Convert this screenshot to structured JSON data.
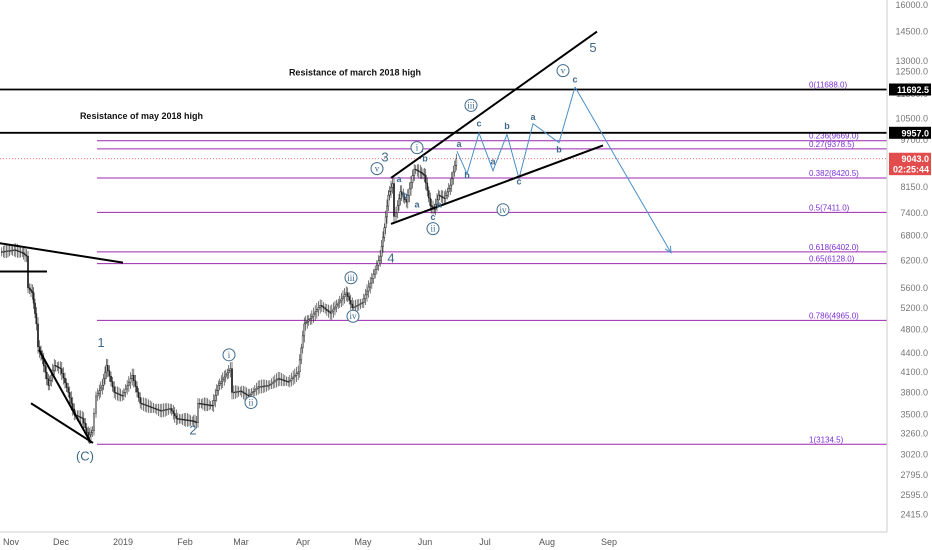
{
  "chart_data": {
    "type": "candlestick",
    "symbol_hint": "BTCUSD",
    "scale": "log",
    "y_range": [
      2415,
      17000
    ],
    "x_range": [
      "2018-11-01",
      "2019-09-30"
    ],
    "price_ticks": [
      "16000.0",
      "14500.0",
      "13000.0",
      "12500.0",
      "11500.0",
      "10500.0",
      "9700.0",
      "8900.0",
      "8150.0",
      "7400.0",
      "6800.0",
      "6200.0",
      "5600.0",
      "5200.0",
      "4800.0",
      "4400.0",
      "4100.0",
      "3800.0",
      "3500.0",
      "3260.0",
      "3020.0",
      "2795.0",
      "2595.0",
      "2415.0"
    ],
    "tick_values": [
      16000,
      14500,
      13000,
      12500,
      11500,
      10500,
      9700,
      8900,
      8150,
      7400,
      6800,
      6200,
      5600,
      5200,
      4800,
      4400,
      4100,
      3800,
      3500,
      3260,
      3020,
      2795,
      2595,
      2415
    ],
    "time_ticks": [
      {
        "label": "Nov",
        "date": "2018-11-06"
      },
      {
        "label": "Dec",
        "date": "2018-12-01"
      },
      {
        "label": "2019",
        "date": "2019-01-01"
      },
      {
        "label": "Feb",
        "date": "2019-02-01"
      },
      {
        "label": "Mar",
        "date": "2019-03-01"
      },
      {
        "label": "Apr",
        "date": "2019-04-01"
      },
      {
        "label": "May",
        "date": "2019-05-01"
      },
      {
        "label": "Jun",
        "date": "2019-06-01"
      },
      {
        "label": "Jul",
        "date": "2019-07-01"
      },
      {
        "label": "Aug",
        "date": "2019-08-01"
      },
      {
        "label": "Sep",
        "date": "2019-09-01"
      }
    ],
    "price_badges": [
      {
        "text": "11692.5",
        "value": 11692.5,
        "color": "#000000"
      },
      {
        "text": "9957.0",
        "value": 9957,
        "color": "#000000"
      },
      {
        "text": "9043.0",
        "value": 9043,
        "color": "#e24c4c"
      },
      {
        "text": "02:25:44",
        "value": 8700,
        "color": "#e24c4c"
      }
    ],
    "fib_levels": [
      {
        "label": "0(11688.0)",
        "value": 11688
      },
      {
        "label": "0.236(9669.0)",
        "value": 9669
      },
      {
        "label": "0.27(9378.5)",
        "value": 9378.5
      },
      {
        "label": "0.382(8420.5)",
        "value": 8420.5
      },
      {
        "label": "0.5(7411.0)",
        "value": 7411
      },
      {
        "label": "0.618(6402.0)",
        "value": 6402
      },
      {
        "label": "0.65(6128.0)",
        "value": 6128
      },
      {
        "label": "0.786(4965.0)",
        "value": 4965
      },
      {
        "label": "1(3134.5)",
        "value": 3134.5
      }
    ],
    "horizontal_levels": [
      {
        "text": "Resistance of march 2018 high",
        "value": 11692.5
      },
      {
        "text": "Resistance of may 2018 high",
        "value": 9957
      }
    ],
    "price_path": [
      [
        "2018-11-01",
        6400
      ],
      [
        "2018-11-08",
        6450
      ],
      [
        "2018-11-12",
        6380
      ],
      [
        "2018-11-14",
        6300
      ],
      [
        "2018-11-15",
        5600
      ],
      [
        "2018-11-17",
        5500
      ],
      [
        "2018-11-19",
        4900
      ],
      [
        "2018-11-20",
        4500
      ],
      [
        "2018-11-22",
        4300
      ],
      [
        "2018-11-25",
        3900
      ],
      [
        "2018-11-28",
        4200
      ],
      [
        "2018-12-01",
        4150
      ],
      [
        "2018-12-05",
        3800
      ],
      [
        "2018-12-08",
        3500
      ],
      [
        "2018-12-12",
        3450
      ],
      [
        "2018-12-15",
        3220
      ],
      [
        "2018-12-17",
        3300
      ],
      [
        "2018-12-19",
        3750
      ],
      [
        "2018-12-22",
        3900
      ],
      [
        "2018-12-24",
        4200
      ],
      [
        "2018-12-28",
        3800
      ],
      [
        "2019-01-01",
        3750
      ],
      [
        "2019-01-06",
        4050
      ],
      [
        "2019-01-10",
        3650
      ],
      [
        "2019-01-15",
        3600
      ],
      [
        "2019-01-20",
        3550
      ],
      [
        "2019-01-25",
        3580
      ],
      [
        "2019-01-28",
        3450
      ],
      [
        "2019-02-05",
        3420
      ],
      [
        "2019-02-07",
        3400
      ],
      [
        "2019-02-08",
        3650
      ],
      [
        "2019-02-15",
        3620
      ],
      [
        "2019-02-18",
        3900
      ],
      [
        "2019-02-24",
        4150
      ],
      [
        "2019-02-25",
        3800
      ],
      [
        "2019-03-01",
        3820
      ],
      [
        "2019-03-05",
        3750
      ],
      [
        "2019-03-10",
        3880
      ],
      [
        "2019-03-15",
        3900
      ],
      [
        "2019-03-20",
        4000
      ],
      [
        "2019-03-25",
        3950
      ],
      [
        "2019-03-30",
        4100
      ],
      [
        "2019-04-02",
        4900
      ],
      [
        "2019-04-05",
        5000
      ],
      [
        "2019-04-10",
        5250
      ],
      [
        "2019-04-15",
        5100
      ],
      [
        "2019-04-23",
        5500
      ],
      [
        "2019-04-26",
        5200
      ],
      [
        "2019-05-01",
        5300
      ],
      [
        "2019-05-05",
        5700
      ],
      [
        "2019-05-10",
        6300
      ],
      [
        "2019-05-12",
        7000
      ],
      [
        "2019-05-14",
        7900
      ],
      [
        "2019-05-16",
        8250
      ],
      [
        "2019-05-17",
        7300
      ],
      [
        "2019-05-18",
        7400
      ],
      [
        "2019-05-20",
        8000
      ],
      [
        "2019-05-23",
        7700
      ],
      [
        "2019-05-27",
        8700
      ],
      [
        "2019-05-30",
        8600
      ],
      [
        "2019-06-01",
        8500
      ],
      [
        "2019-06-04",
        7600
      ],
      [
        "2019-06-06",
        7500
      ],
      [
        "2019-06-08",
        7900
      ],
      [
        "2019-06-11",
        7800
      ],
      [
        "2019-06-14",
        8200
      ],
      [
        "2019-06-17",
        9043
      ]
    ],
    "wave_projection": [
      [
        "2019-06-17",
        9300
      ],
      [
        "2019-06-22",
        8550
      ],
      [
        "2019-06-28",
        9950
      ],
      [
        "2019-07-05",
        8650
      ],
      [
        "2019-07-12",
        9900
      ],
      [
        "2019-07-18",
        8400
      ],
      [
        "2019-07-25",
        10300
      ],
      [
        "2019-08-07",
        9600
      ],
      [
        "2019-08-15",
        11800
      ]
    ],
    "projection_arrow": {
      "from": [
        "2019-08-15",
        11800
      ],
      "to": [
        "2019-10-02",
        6380
      ]
    },
    "trend_lines": [
      {
        "name": "wedge-upper-line",
        "from": [
          "2019-05-15",
          8420
        ],
        "to": [
          "2019-08-26",
          14500
        ]
      },
      {
        "name": "wedge-lower-line",
        "from": [
          "2019-05-15",
          7100
        ],
        "to": [
          "2019-08-29",
          9500
        ]
      },
      {
        "name": "left-upper-line",
        "from": [
          "2018-10-20",
          6700
        ],
        "to": [
          "2019-01-01",
          6150
        ]
      },
      {
        "name": "left-lower-line",
        "from": [
          "2018-10-20",
          5950
        ],
        "to": [
          "2018-11-24",
          5950
        ]
      },
      {
        "name": "diag-upper-line",
        "from": [
          "2018-11-20",
          4450
        ],
        "to": [
          "2018-12-16",
          3150
        ]
      },
      {
        "name": "diag-lower-line",
        "from": [
          "2018-11-16",
          3650
        ],
        "to": [
          "2018-12-17",
          3150
        ]
      }
    ],
    "wave_labels": [
      {
        "text": "(C)",
        "style": "big",
        "at": [
          "2018-12-13",
          2950
        ]
      },
      {
        "text": "1",
        "style": "big",
        "at": [
          "2018-12-21",
          4500
        ]
      },
      {
        "text": "2",
        "style": "big",
        "at": [
          "2019-02-05",
          3250
        ]
      },
      {
        "text": "3",
        "style": "big",
        "at": [
          "2019-05-12",
          8950
        ]
      },
      {
        "text": "4",
        "style": "big",
        "at": [
          "2019-05-15",
          6150
        ]
      },
      {
        "text": "5",
        "style": "big",
        "at": [
          "2019-08-24",
          13450
        ]
      },
      {
        "text": "a",
        "style": "small",
        "at": [
          "2019-05-19",
          8300
        ]
      },
      {
        "text": "b",
        "style": "small",
        "at": [
          "2019-05-22",
          7800
        ]
      },
      {
        "text": "c",
        "style": "small",
        "at": [
          "2019-05-30",
          9250
        ]
      },
      {
        "text": "a",
        "style": "small",
        "at": [
          "2019-05-28",
          7550
        ]
      },
      {
        "text": "b",
        "style": "small",
        "at": [
          "2019-06-01",
          8950
        ]
      },
      {
        "text": "a",
        "style": "small",
        "at": [
          "2019-06-08",
          7550
        ]
      },
      {
        "text": "c",
        "style": "small",
        "at": [
          "2019-06-05",
          7200
        ]
      },
      {
        "text": "a",
        "style": "small",
        "at": [
          "2019-06-18",
          9450
        ]
      },
      {
        "text": "b",
        "style": "small",
        "at": [
          "2019-06-22",
          8400
        ]
      },
      {
        "text": "c",
        "style": "small",
        "at": [
          "2019-06-28",
          10200
        ]
      },
      {
        "text": "a",
        "style": "small",
        "at": [
          "2019-07-05",
          8850
        ]
      },
      {
        "text": "b",
        "style": "small",
        "at": [
          "2019-07-12",
          10100
        ]
      },
      {
        "text": "c",
        "style": "small",
        "at": [
          "2019-07-18",
          8220
        ]
      },
      {
        "text": "a",
        "style": "small",
        "at": [
          "2019-07-25",
          10450
        ]
      },
      {
        "text": "b",
        "style": "small",
        "at": [
          "2019-08-07",
          9250
        ]
      },
      {
        "text": "c",
        "style": "small",
        "at": [
          "2019-08-15",
          12000
        ]
      }
    ],
    "circled_labels": [
      {
        "text": "i",
        "at": [
          "2019-02-23",
          4320
        ]
      },
      {
        "text": "ii",
        "at": [
          "2019-03-06",
          3620
        ]
      },
      {
        "text": "iii",
        "at": [
          "2019-04-25",
          5750
        ]
      },
      {
        "text": "iv",
        "at": [
          "2019-04-26",
          4985
        ]
      },
      {
        "text": "v",
        "at": [
          "2019-05-08",
          8620
        ]
      },
      {
        "text": "i",
        "at": [
          "2019-05-28",
          9320
        ]
      },
      {
        "text": "ii",
        "at": [
          "2019-06-05",
          6900
        ]
      },
      {
        "text": "iii",
        "at": [
          "2019-06-24",
          10900
        ]
      },
      {
        "text": "iv",
        "at": [
          "2019-07-10",
          7400
        ]
      },
      {
        "text": "v",
        "at": [
          "2019-08-09",
          12400
        ]
      }
    ]
  },
  "styles": {
    "fib_color": "#9c27b0",
    "wave_color": "#4b8fc6",
    "label_color": "#3e6a8c",
    "up_color": "#222222",
    "current_price_color": "#e24c4c"
  }
}
